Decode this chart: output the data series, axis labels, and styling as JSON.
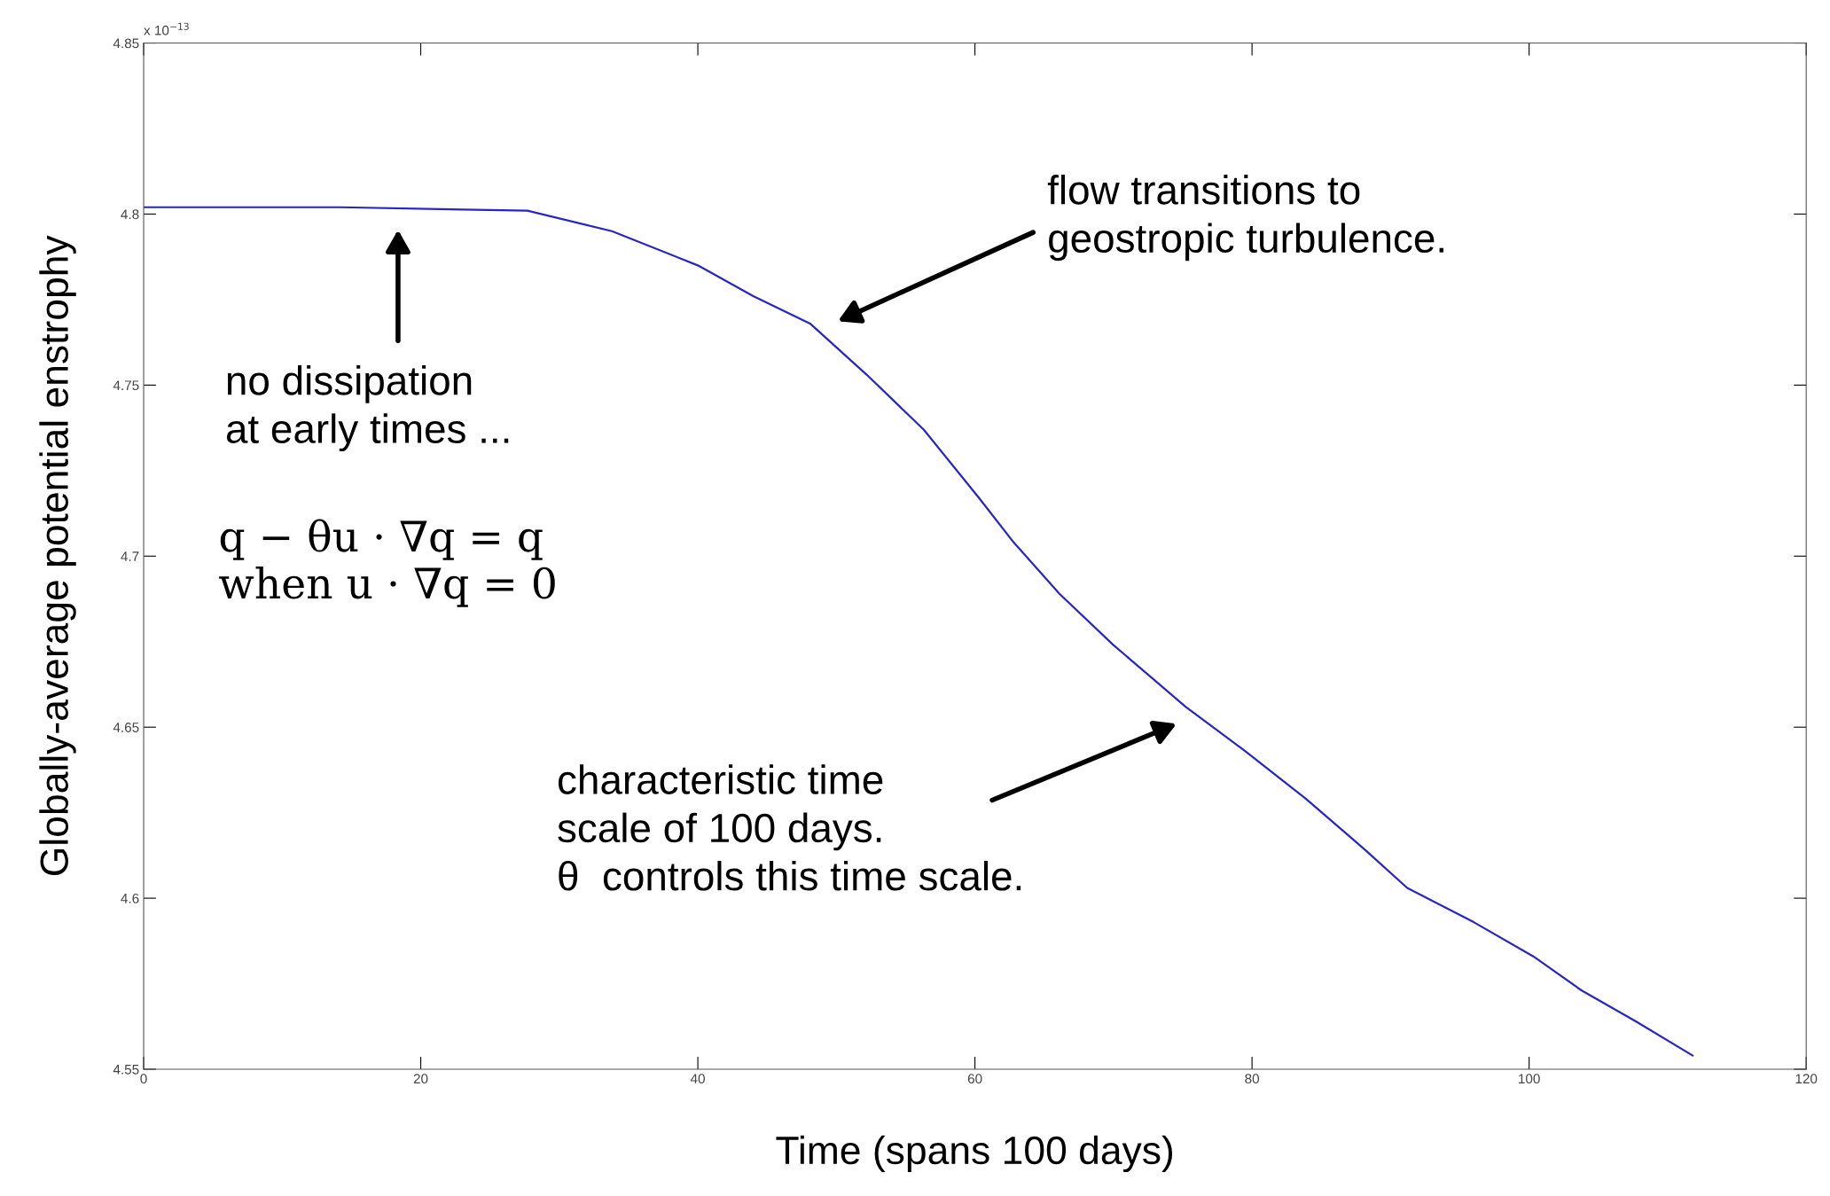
{
  "chart_data": {
    "type": "line",
    "xlabel": "Time (spans 100 days)",
    "ylabel": "Globally-average potential enstrophy",
    "xlim": [
      0,
      120
    ],
    "xticks": [
      0,
      20,
      40,
      60,
      80,
      100,
      120
    ],
    "ylim": [
      4.55,
      4.85
    ],
    "yticks": [
      4.55,
      4.6,
      4.65,
      4.7,
      4.75,
      4.8,
      4.85
    ],
    "grid": false,
    "legend": false,
    "marker": "none",
    "line_style": "solid",
    "series": [
      {
        "color": "#2626c8",
        "x": [
          0,
          14.2,
          27.7,
          33.8,
          40.0,
          44.0,
          48.1,
          52.2,
          56.3,
          60.3,
          62.8,
          66.1,
          70.0,
          75.2,
          79.5,
          83.9,
          88.2,
          91.2,
          96.0,
          100.3,
          103.8,
          107.7,
          111.8
        ],
        "values": [
          4.802,
          4.802,
          4.801,
          4.795,
          4.785,
          4.776,
          4.768,
          4.753,
          4.737,
          4.717,
          4.704,
          4.689,
          4.674,
          4.656,
          4.643,
          4.629,
          4.614,
          4.603,
          4.593,
          4.583,
          4.573,
          4.564,
          4.554
        ]
      }
    ],
    "annotations": [
      "flow transitions to\ngeostropic turbulence.",
      "no dissipation\nat early times ...",
      "q − θu · ∇q = q\nwhen u · ∇q = 0",
      "characteristic time\nscale of 100 days.\nθ  controls this time scale.",
      "x 10$^{−13}$"
    ]
  }
}
